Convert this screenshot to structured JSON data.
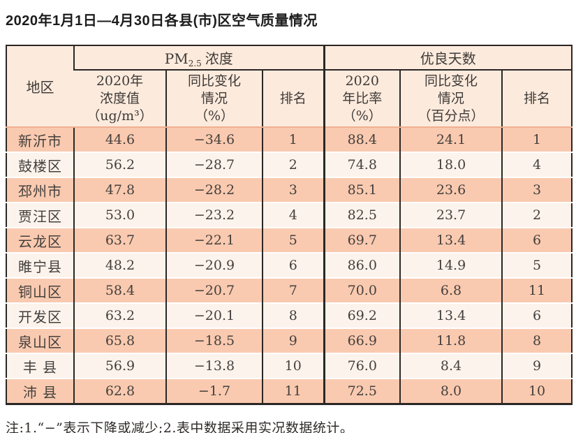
{
  "title": "2020年1月1日—4月30日各县(市)区空气质量情况",
  "table": {
    "region_header": "地区",
    "pm_group": {
      "prefix": "PM",
      "subscript": "2.5",
      "suffix": "浓度"
    },
    "good_days_group": "优良天数",
    "sub_headers": {
      "pm_value": "2020年\n浓度值\n（ug/m³）",
      "pm_change": "同比变化\n情况\n（%）",
      "pm_rank": "排名",
      "gd_ratio": "2020\n年比率\n（%）",
      "gd_change": "同比变化\n情况\n（百分点）",
      "gd_rank": "排名"
    },
    "rows": [
      {
        "region": "新沂市",
        "pm_value": "44.6",
        "pm_change": "−34.6",
        "pm_rank": "1",
        "gd_ratio": "88.4",
        "gd_change": "24.1",
        "gd_rank": "1"
      },
      {
        "region": "鼓楼区",
        "pm_value": "56.2",
        "pm_change": "−28.7",
        "pm_rank": "2",
        "gd_ratio": "74.8",
        "gd_change": "18.0",
        "gd_rank": "4"
      },
      {
        "region": "邳州市",
        "pm_value": "47.8",
        "pm_change": "−28.2",
        "pm_rank": "3",
        "gd_ratio": "85.1",
        "gd_change": "23.6",
        "gd_rank": "3"
      },
      {
        "region": "贾汪区",
        "pm_value": "53.0",
        "pm_change": "−23.2",
        "pm_rank": "4",
        "gd_ratio": "82.5",
        "gd_change": "23.7",
        "gd_rank": "2"
      },
      {
        "region": "云龙区",
        "pm_value": "63.7",
        "pm_change": "−22.1",
        "pm_rank": "5",
        "gd_ratio": "69.7",
        "gd_change": "13.4",
        "gd_rank": "6"
      },
      {
        "region": "睢宁县",
        "pm_value": "48.2",
        "pm_change": "−20.9",
        "pm_rank": "6",
        "gd_ratio": "86.0",
        "gd_change": "14.9",
        "gd_rank": "5"
      },
      {
        "region": "铜山区",
        "pm_value": "58.4",
        "pm_change": "−20.7",
        "pm_rank": "7",
        "gd_ratio": "70.0",
        "gd_change": "6.8",
        "gd_rank": "11"
      },
      {
        "region": "开发区",
        "pm_value": "63.2",
        "pm_change": "−20.1",
        "pm_rank": "8",
        "gd_ratio": "69.2",
        "gd_change": "13.4",
        "gd_rank": "6"
      },
      {
        "region": "泉山区",
        "pm_value": "65.8",
        "pm_change": "−18.5",
        "pm_rank": "9",
        "gd_ratio": "66.9",
        "gd_change": "11.8",
        "gd_rank": "8"
      },
      {
        "region": "丰 县",
        "pm_value": "56.9",
        "pm_change": "−13.8",
        "pm_rank": "10",
        "gd_ratio": "76.0",
        "gd_change": "8.4",
        "gd_rank": "9"
      },
      {
        "region": "沛 县",
        "pm_value": "62.8",
        "pm_change": "−1.7",
        "pm_rank": "11",
        "gd_ratio": "72.5",
        "gd_change": "8.0",
        "gd_rank": "10"
      }
    ]
  },
  "footnote": "注:1.“−”表示下降或减少;2.表中数据采用实况数据统计。",
  "colors": {
    "header_bg": "#fcebdd",
    "row_odd_bg": "#f9cab0",
    "row_even_bg": "#fcf3ec",
    "border_dark": "#2b2724",
    "header_separator": "#f0b092",
    "row_separator": "#ffffff",
    "text": "#443f3c"
  }
}
